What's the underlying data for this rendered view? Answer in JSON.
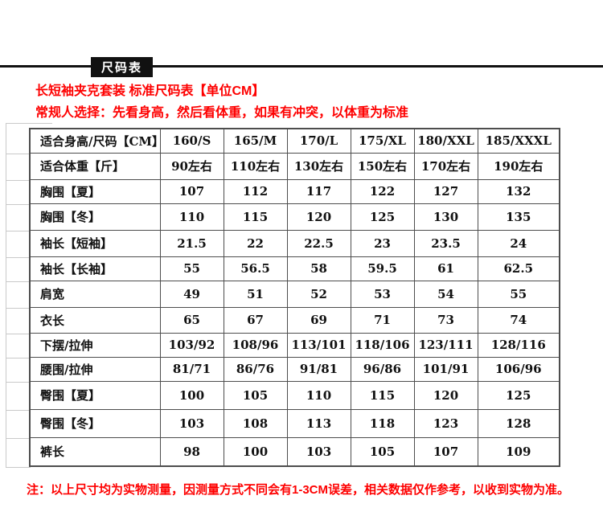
{
  "page": {
    "badge_label": "尺码表",
    "title_line1": "长短袖夹克套装 标准尺码表【单位CM】",
    "title_line2": "常规人选择：先看身高，然后看体重，如果有冲突，以体重为标准",
    "footnote": "注：以上尺寸均为实物测量，因测量方式不同会有1-3CM误差，相关数据仅作参考，以收到实物为准。"
  },
  "colors": {
    "accent_red": "#fe0000",
    "badge_bg": "#111111",
    "table_border": "#4d4d4d",
    "ghost_line": "#c9c9c9"
  },
  "chart_data": {
    "type": "table",
    "title": "长短袖夹克套装 标准尺码表【单位CM】",
    "columns": [
      "适合身高/尺码【CM】",
      "160/S",
      "165/M",
      "170/L",
      "175/XL",
      "180/XXL",
      "185/XXXL"
    ],
    "rows": [
      [
        "适合体重【斤】",
        "90左右",
        "110左右",
        "130左右",
        "150左右",
        "170左右",
        "190左右"
      ],
      [
        "胸围【夏】",
        "107",
        "112",
        "117",
        "122",
        "127",
        "132"
      ],
      [
        "胸围【冬】",
        "110",
        "115",
        "120",
        "125",
        "130",
        "135"
      ],
      [
        "袖长【短袖】",
        "21.5",
        "22",
        "22.5",
        "23",
        "23.5",
        "24"
      ],
      [
        "袖长【长袖】",
        "55",
        "56.5",
        "58",
        "59.5",
        "61",
        "62.5"
      ],
      [
        "肩宽",
        "49",
        "51",
        "52",
        "53",
        "54",
        "55"
      ],
      [
        "衣长",
        "65",
        "67",
        "69",
        "71",
        "73",
        "74"
      ],
      [
        "下摆/拉伸",
        "103/92",
        "108/96",
        "113/101",
        "118/106",
        "123/111",
        "128/116"
      ],
      [
        "腰围/拉伸",
        "81/71",
        "86/76",
        "91/81",
        "96/86",
        "101/91",
        "106/96"
      ],
      [
        "臀围【夏】",
        "100",
        "105",
        "110",
        "115",
        "120",
        "125"
      ],
      [
        "臀围【冬】",
        "103",
        "108",
        "113",
        "118",
        "123",
        "128"
      ],
      [
        "裤长",
        "98",
        "100",
        "103",
        "105",
        "107",
        "109"
      ]
    ]
  },
  "size_table": {
    "header": {
      "label": "适合身高/尺码【CM】",
      "sizes": [
        "160/S",
        "165/M",
        "170/L",
        "175/XL",
        "180/XXL",
        "185/XXXL"
      ]
    },
    "rows": [
      {
        "label": "适合体重【斤】",
        "values": [
          "90左右",
          "110左右",
          "130左右",
          "150左右",
          "170左右",
          "190左右"
        ]
      },
      {
        "label": "胸围【夏】",
        "values": [
          "107",
          "112",
          "117",
          "122",
          "127",
          "132"
        ]
      },
      {
        "label": "胸围【冬】",
        "values": [
          "110",
          "115",
          "120",
          "125",
          "130",
          "135"
        ]
      },
      {
        "label": "袖长【短袖】",
        "values": [
          "21.5",
          "22",
          "22.5",
          "23",
          "23.5",
          "24"
        ]
      },
      {
        "label": "袖长【长袖】",
        "values": [
          "55",
          "56.5",
          "58",
          "59.5",
          "61",
          "62.5"
        ]
      },
      {
        "label": "肩宽",
        "values": [
          "49",
          "51",
          "52",
          "53",
          "54",
          "55"
        ]
      },
      {
        "label": "衣长",
        "values": [
          "65",
          "67",
          "69",
          "71",
          "73",
          "74"
        ]
      },
      {
        "label": "下摆/拉伸",
        "values": [
          "103/92",
          "108/96",
          "113/101",
          "118/106",
          "123/111",
          "128/116"
        ]
      },
      {
        "label": "腰围/拉伸",
        "values": [
          "81/71",
          "86/76",
          "91/81",
          "96/86",
          "101/91",
          "106/96"
        ]
      },
      {
        "label": "臀围【夏】",
        "values": [
          "100",
          "105",
          "110",
          "115",
          "120",
          "125"
        ]
      },
      {
        "label": "臀围【冬】",
        "values": [
          "103",
          "108",
          "113",
          "118",
          "123",
          "128"
        ]
      },
      {
        "label": "裤长",
        "values": [
          "98",
          "100",
          "103",
          "105",
          "107",
          "109"
        ]
      }
    ]
  }
}
